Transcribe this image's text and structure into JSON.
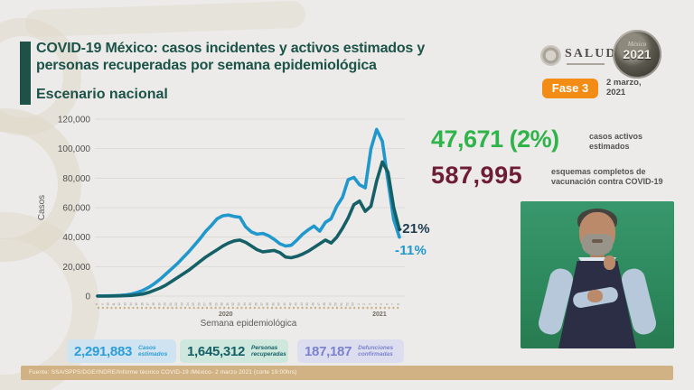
{
  "header": {
    "title_line1": "COVID-19 México: casos incidentes y activos estimados y",
    "title_line2": "personas recuperadas por semana epidemiológica",
    "subtitle": "Escenario nacional",
    "salud_logo": "SALUD",
    "mexico_logo_script": "México",
    "mexico_logo_year": "2021",
    "phase_badge": "Fase 3",
    "date_line1": "2 marzo,",
    "date_line2": "2021"
  },
  "stats": {
    "active": {
      "value": "47,671 (2%)",
      "label_line1": "casos activos",
      "label_line2": "estimados",
      "color": "#2fb44b"
    },
    "vaccination": {
      "value": "587,995",
      "label_line1": "esquemas completos de",
      "label_line2": "vacunación contra COVID-19",
      "color": "#6e1d36"
    }
  },
  "footer_boxes": [
    {
      "value": "2,291,883",
      "label_line1": "Casos",
      "label_line2": "estimados",
      "bg": "#cfe3f0",
      "color": "#2d9ed8"
    },
    {
      "value": "1,645,312",
      "label_line1": "Personas",
      "label_line2": "recuperadas",
      "bg": "#cee8dd",
      "color": "#155f66"
    },
    {
      "value": "187,187",
      "label_line1": "Defunciones",
      "label_line2": "confirmadas",
      "bg": "#dcdef0",
      "color": "#7b82cc"
    }
  ],
  "source": "Fuente: SSA/SPPS/DGE/INDRE/Informe técnico COVID-19 /México- 2 marzo 2021 (corte 19:00hrs)",
  "chart_data": {
    "type": "line",
    "title": "Escenario nacional",
    "xlabel": "Semana epidemiológica",
    "ylabel": "Casos",
    "ylim": [
      0,
      120000
    ],
    "grid": true,
    "legend_position": "none",
    "ytick_labels": [
      "0",
      "20,000",
      "40,000",
      "60,000",
      "80,000",
      "100,000",
      "120,000"
    ],
    "x_weeks": [
      "8",
      "9",
      "10",
      "11",
      "12",
      "13",
      "14",
      "15",
      "16",
      "17",
      "18",
      "19",
      "20",
      "21",
      "22",
      "23",
      "24",
      "25",
      "26",
      "27",
      "28",
      "29",
      "30",
      "31",
      "32",
      "33",
      "34",
      "35",
      "36",
      "37",
      "38",
      "39",
      "40",
      "41",
      "42",
      "43",
      "44",
      "45",
      "46",
      "47",
      "48",
      "49",
      "50",
      "51",
      "52",
      "53",
      "1",
      "2",
      "3",
      "4",
      "5",
      "6",
      "7",
      "8"
    ],
    "year_groups": [
      {
        "label": "2020",
        "from": 0,
        "to": 45
      },
      {
        "label": "2021",
        "from": 46,
        "to": 53
      }
    ],
    "series": [
      {
        "name": "Casos incidentes estimados",
        "color": "#2098cc",
        "values": [
          100,
          150,
          200,
          300,
          500,
          800,
          1500,
          2500,
          4000,
          6000,
          8500,
          11500,
          15000,
          18500,
          22000,
          26000,
          30000,
          34500,
          39000,
          44000,
          48000,
          52500,
          54500,
          55000,
          54000,
          53500,
          47000,
          43500,
          42000,
          42500,
          41000,
          38500,
          35500,
          34000,
          34500,
          38000,
          42000,
          45000,
          47500,
          44000,
          50000,
          52500,
          61000,
          67000,
          79000,
          80500,
          75500,
          73500,
          100000,
          113000,
          105000,
          78000,
          52000,
          40000
        ]
      },
      {
        "name": "Personas recuperadas",
        "color": "#155f66",
        "values": [
          0,
          0,
          0,
          100,
          200,
          300,
          500,
          900,
          1500,
          2500,
          4000,
          5500,
          7500,
          10000,
          12500,
          15000,
          17500,
          20500,
          23500,
          26500,
          29000,
          31500,
          34000,
          36000,
          37500,
          38000,
          36500,
          34000,
          31500,
          30000,
          30500,
          31000,
          29500,
          26500,
          26000,
          27000,
          28500,
          30500,
          33000,
          35500,
          38000,
          36000,
          40000,
          46000,
          53000,
          62000,
          64500,
          57500,
          61000,
          78000,
          91000,
          84000,
          60000,
          45000
        ]
      }
    ],
    "annotations": [
      {
        "text": "-21%",
        "color": "#1d3c4e"
      },
      {
        "text": "-11%",
        "color": "#2098cc"
      }
    ]
  }
}
